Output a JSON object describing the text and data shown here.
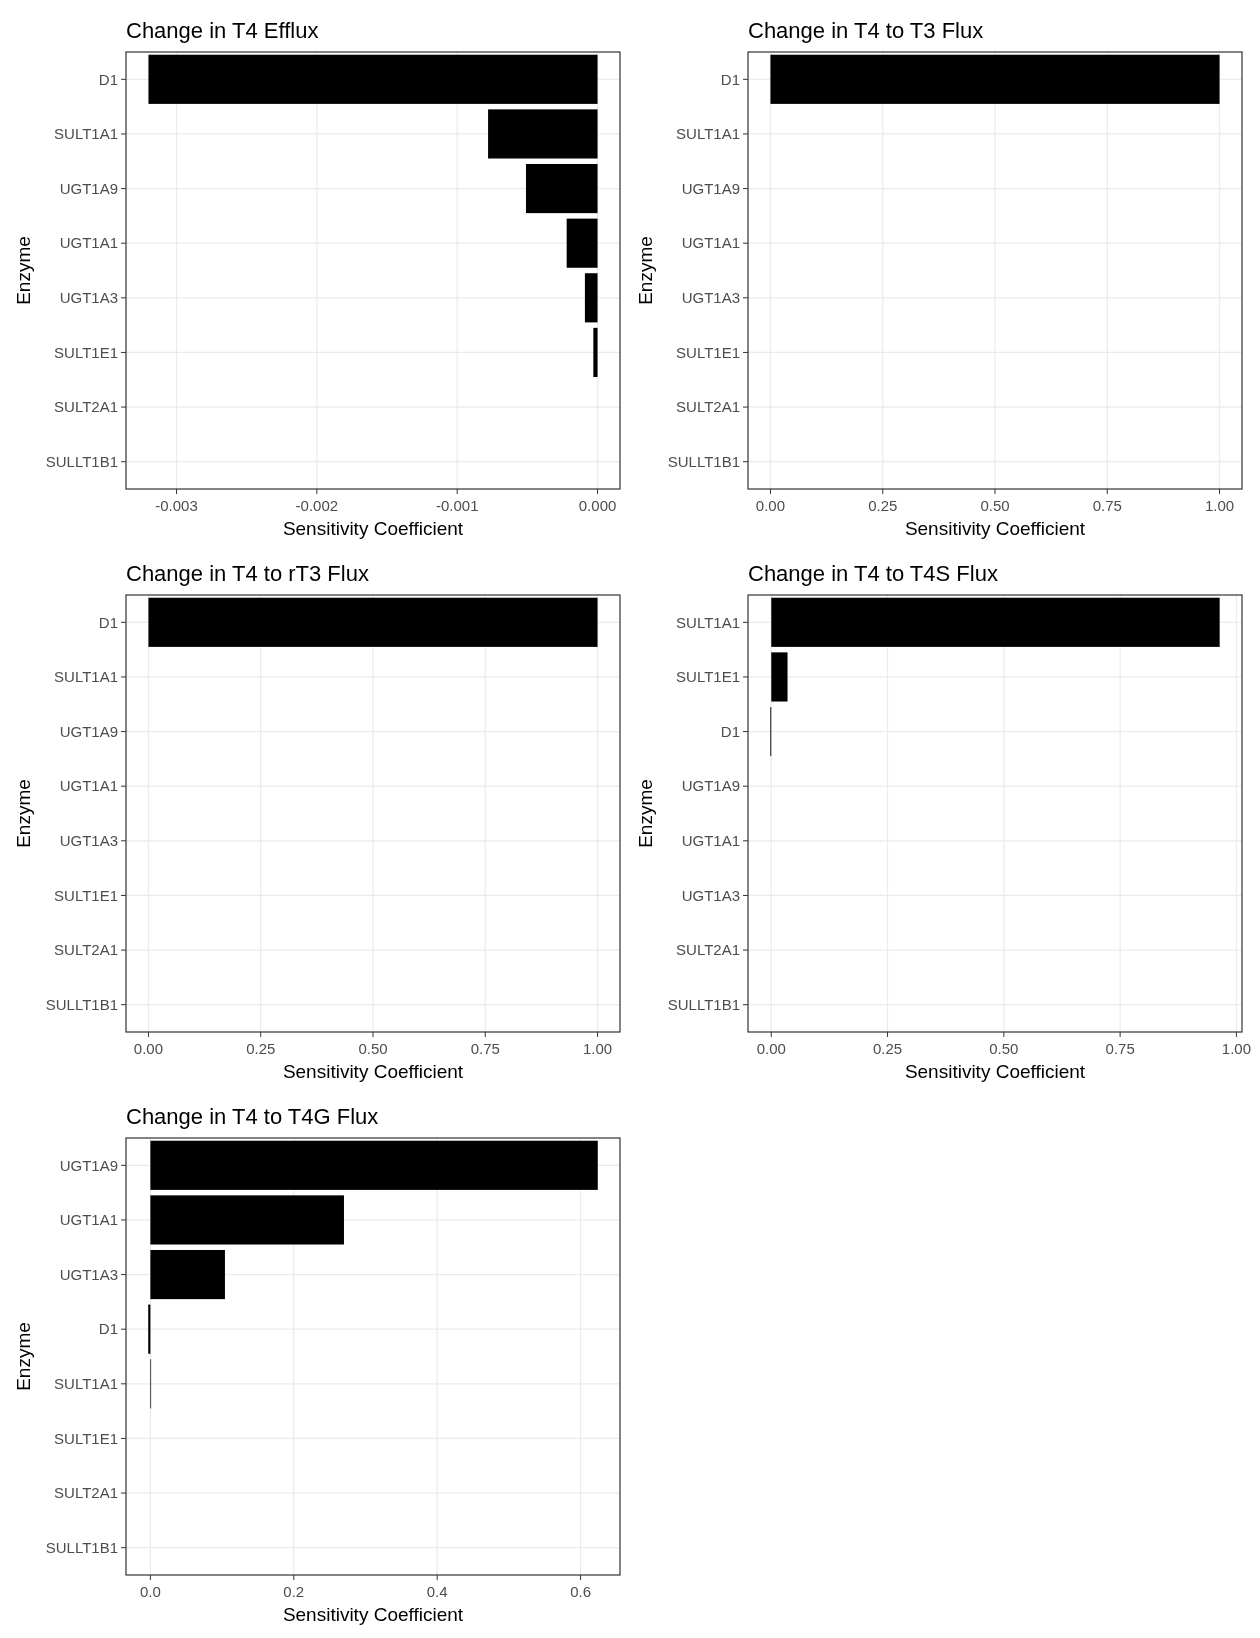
{
  "chart_data": [
    {
      "type": "bar",
      "orientation": "horizontal",
      "title": "Change in T4 Efflux",
      "xlabel": "Sensitivity Coefficient",
      "ylabel": "Enzyme",
      "categories": [
        "D1",
        "SULT1A1",
        "UGT1A9",
        "UGT1A1",
        "UGT1A3",
        "SULT1E1",
        "SULT2A1",
        "SULLT1B1"
      ],
      "values": [
        -0.0032,
        -0.00078,
        -0.00051,
        -0.00022,
        -9e-05,
        -3e-05,
        0,
        0
      ],
      "color": "#000000",
      "xlim": [
        -0.00336,
        0.00016
      ],
      "xticks": [
        {
          "value": -0.003,
          "label": "-0.003"
        },
        {
          "value": -0.002,
          "label": "-0.002"
        },
        {
          "value": -0.001,
          "label": "-0.001"
        },
        {
          "value": 0,
          "label": "0.000"
        }
      ],
      "grid": true
    },
    {
      "type": "bar",
      "orientation": "horizontal",
      "title": "Change in T4 to T3 Flux",
      "xlabel": "Sensitivity Coefficient",
      "ylabel": "Enzyme",
      "categories": [
        "D1",
        "SULT1A1",
        "UGT1A9",
        "UGT1A1",
        "UGT1A3",
        "SULT1E1",
        "SULT2A1",
        "SULLT1B1"
      ],
      "values": [
        1,
        0,
        0,
        0,
        0,
        0,
        0,
        0
      ],
      "color": "#000000",
      "xlim": [
        -0.05,
        1.05
      ],
      "xticks": [
        {
          "value": 0,
          "label": "0.00"
        },
        0.25,
        {
          "value": 0.5,
          "label": "0.50"
        },
        0.75,
        {
          "value": 1,
          "label": "1.00"
        }
      ],
      "grid": true
    },
    {
      "type": "bar",
      "orientation": "horizontal",
      "title": "Change in T4 to rT3 Flux",
      "xlabel": "Sensitivity Coefficient",
      "ylabel": "Enzyme",
      "categories": [
        "D1",
        "SULT1A1",
        "UGT1A9",
        "UGT1A1",
        "UGT1A3",
        "SULT1E1",
        "SULT2A1",
        "SULLT1B1"
      ],
      "values": [
        1,
        0,
        0,
        0,
        0,
        0,
        0,
        0
      ],
      "color": "#000000",
      "xlim": [
        -0.05,
        1.05
      ],
      "xticks": [
        {
          "value": 0,
          "label": "0.00"
        },
        0.25,
        {
          "value": 0.5,
          "label": "0.50"
        },
        0.75,
        {
          "value": 1,
          "label": "1.00"
        }
      ],
      "grid": true
    },
    {
      "type": "bar",
      "orientation": "horizontal",
      "title": "Change in T4 to T4S Flux",
      "xlabel": "Sensitivity Coefficient",
      "ylabel": "Enzyme",
      "categories": [
        "SULT1A1",
        "SULT1E1",
        "D1",
        "UGT1A9",
        "UGT1A1",
        "UGT1A3",
        "SULT2A1",
        "SULLT1B1"
      ],
      "values": [
        0.964,
        0.035,
        -0.002,
        0,
        0,
        0,
        0,
        0
      ],
      "color": "#000000",
      "xlim": [
        -0.05,
        1.012
      ],
      "xticks": [
        {
          "value": 0,
          "label": "0.00"
        },
        0.25,
        {
          "value": 0.5,
          "label": "0.50"
        },
        0.75,
        {
          "value": 1,
          "label": "1.00"
        }
      ],
      "grid": true
    },
    {
      "type": "bar",
      "orientation": "horizontal",
      "title": "Change in T4 to T4G Flux",
      "xlabel": "Sensitivity Coefficient",
      "ylabel": "Enzyme",
      "categories": [
        "UGT1A9",
        "UGT1A1",
        "UGT1A3",
        "D1",
        "SULT1A1",
        "SULT1E1",
        "SULT2A1",
        "SULLT1B1"
      ],
      "values": [
        0.624,
        0.27,
        0.104,
        -0.003,
        0.001,
        0,
        0,
        0
      ],
      "color": "#000000",
      "xlim": [
        -0.034,
        0.655
      ],
      "xticks": [
        {
          "value": 0,
          "label": "0.0"
        },
        0.2,
        0.4,
        0.6
      ],
      "grid": true
    }
  ]
}
